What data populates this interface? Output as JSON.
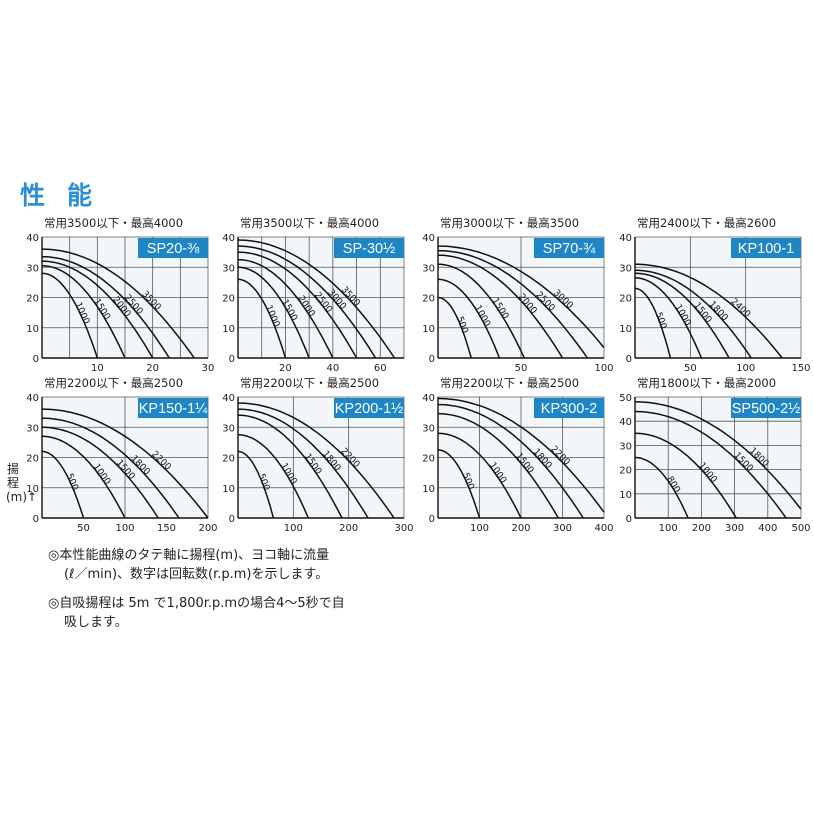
{
  "section_title": "性能",
  "y_axis_label": "揚程(m)↑",
  "notes": [
    {
      "line1": "◎本性能曲線のタテ軸に揚程(m)、ヨコ軸に流量",
      "line2": "(ℓ／min)、数字は回転数(r.p.m)を示します。"
    },
    {
      "line1": "◎自吸揚程は 5m で1,800r.p.mの場合4～5秒で自",
      "line2": "吸します。"
    }
  ],
  "colors": {
    "title": "#2a8fd6",
    "badge": "#1e86c6",
    "badge_text": "#ffffff",
    "curve": "#111111",
    "plot_bg": "#f2f6f9"
  },
  "chart_data": [
    {
      "type": "line",
      "model": "SP20-⅜",
      "subtitle": "常用3500以下・最高4000",
      "xlim": [
        0,
        30
      ],
      "ylim": [
        0,
        40
      ],
      "xgrid": 5,
      "ygrid": 10,
      "xticks": [
        10,
        20,
        30
      ],
      "yticks": [
        0,
        10,
        20,
        30,
        40
      ],
      "curves": [
        {
          "rpm": "1000",
          "shutoff_head": 28,
          "max_flow": 10
        },
        {
          "rpm": "1500",
          "shutoff_head": 30.5,
          "max_flow": 15
        },
        {
          "rpm": "2000",
          "shutoff_head": 32,
          "max_flow": 20
        },
        {
          "rpm": "2500",
          "shutoff_head": 33.5,
          "max_flow": 23
        },
        {
          "rpm": "3500",
          "shutoff_head": 36,
          "max_flow": 27.5
        }
      ]
    },
    {
      "type": "line",
      "model": "SP-30½",
      "subtitle": "常用3500以下・最高4000",
      "xlim": [
        0,
        70
      ],
      "ylim": [
        0,
        40
      ],
      "xgrid": 10,
      "ygrid": 10,
      "xticks": [
        20,
        40,
        60
      ],
      "yticks": [
        0,
        10,
        20,
        30,
        40
      ],
      "curves": [
        {
          "rpm": "1000",
          "shutoff_head": 26,
          "max_flow": 20
        },
        {
          "rpm": "1500",
          "shutoff_head": 30,
          "max_flow": 30
        },
        {
          "rpm": "2000",
          "shutoff_head": 32.5,
          "max_flow": 40
        },
        {
          "rpm": "2500",
          "shutoff_head": 35,
          "max_flow": 50
        },
        {
          "rpm": "3000",
          "shutoff_head": 37,
          "max_flow": 58
        },
        {
          "rpm": "3500",
          "shutoff_head": 39,
          "max_flow": 66
        }
      ]
    },
    {
      "type": "line",
      "model": "SP70-¾",
      "subtitle": "常用3000以下・最高3500",
      "xlim": [
        0,
        100
      ],
      "ylim": [
        0,
        40
      ],
      "xgrid": 50,
      "ygrid": 10,
      "xticks": [
        50,
        100
      ],
      "yticks": [
        0,
        10,
        20,
        30,
        40
      ],
      "curves": [
        {
          "rpm": "500",
          "shutoff_head": 20,
          "max_flow": 20
        },
        {
          "rpm": "1000",
          "shutoff_head": 26,
          "max_flow": 37
        },
        {
          "rpm": "1500",
          "shutoff_head": 31,
          "max_flow": 52
        },
        {
          "rpm": "2000",
          "shutoff_head": 34,
          "max_flow": 75
        },
        {
          "rpm": "2500",
          "shutoff_head": 35.5,
          "max_flow": 90
        },
        {
          "rpm": "3000",
          "shutoff_head": 37,
          "max_flow": 105
        }
      ]
    },
    {
      "type": "line",
      "model": "KP100-1",
      "subtitle": "常用2400以下・最高2600",
      "xlim": [
        0,
        150
      ],
      "ylim": [
        0,
        40
      ],
      "xgrid": 50,
      "ygrid": 10,
      "xticks": [
        50,
        100,
        150
      ],
      "yticks": [
        0,
        10,
        20,
        30,
        40
      ],
      "curves": [
        {
          "rpm": "500",
          "shutoff_head": 23,
          "max_flow": 32
        },
        {
          "rpm": "1000",
          "shutoff_head": 26.5,
          "max_flow": 60
        },
        {
          "rpm": "1500",
          "shutoff_head": 28,
          "max_flow": 85
        },
        {
          "rpm": "1800",
          "shutoff_head": 29,
          "max_flow": 105
        },
        {
          "rpm": "2400",
          "shutoff_head": 31,
          "max_flow": 133
        }
      ]
    },
    {
      "type": "line",
      "model": "KP150-1¼",
      "subtitle": "常用2200以下・最高2500",
      "xlim": [
        0,
        200
      ],
      "ylim": [
        0,
        40
      ],
      "xgrid": 100,
      "ygrid": 10,
      "xticks": [
        50,
        100,
        150,
        200
      ],
      "yticks": [
        0,
        10,
        20,
        30,
        40
      ],
      "curves": [
        {
          "rpm": "500",
          "shutoff_head": 22,
          "max_flow": 50
        },
        {
          "rpm": "1000",
          "shutoff_head": 27,
          "max_flow": 100
        },
        {
          "rpm": "1500",
          "shutoff_head": 30,
          "max_flow": 140
        },
        {
          "rpm": "1800",
          "shutoff_head": 33,
          "max_flow": 165
        },
        {
          "rpm": "2200",
          "shutoff_head": 36,
          "max_flow": 200
        }
      ]
    },
    {
      "type": "line",
      "model": "KP200-1½",
      "subtitle": "常用2200以下・最高2500",
      "xlim": [
        0,
        300
      ],
      "ylim": [
        0,
        40
      ],
      "xgrid": 100,
      "ygrid": 10,
      "xticks": [
        100,
        200,
        300
      ],
      "yticks": [
        0,
        10,
        20,
        30,
        40
      ],
      "curves": [
        {
          "rpm": "500",
          "shutoff_head": 22,
          "max_flow": 64
        },
        {
          "rpm": "1000",
          "shutoff_head": 27.5,
          "max_flow": 127
        },
        {
          "rpm": "1500",
          "shutoff_head": 34,
          "max_flow": 188
        },
        {
          "rpm": "1800",
          "shutoff_head": 36,
          "max_flow": 235
        },
        {
          "rpm": "2200",
          "shutoff_head": 38,
          "max_flow": 282
        }
      ]
    },
    {
      "type": "line",
      "model": "KP300-2",
      "subtitle": "常用2200以下・最高2500",
      "xlim": [
        0,
        400
      ],
      "ylim": [
        0,
        40
      ],
      "xgrid": 100,
      "ygrid": 10,
      "xticks": [
        100,
        200,
        300,
        400
      ],
      "yticks": [
        0,
        10,
        20,
        30,
        40
      ],
      "curves": [
        {
          "rpm": "500",
          "shutoff_head": 22.5,
          "max_flow": 100
        },
        {
          "rpm": "1000",
          "shutoff_head": 28,
          "max_flow": 200
        },
        {
          "rpm": "1500",
          "shutoff_head": 34.5,
          "max_flow": 290
        },
        {
          "rpm": "1800",
          "shutoff_head": 37.5,
          "max_flow": 350
        },
        {
          "rpm": "2200",
          "shutoff_head": 39.5,
          "max_flow": 410
        }
      ]
    },
    {
      "type": "line",
      "model": "SP500-2½",
      "subtitle": "常用1800以下・最高2000",
      "xlim": [
        0,
        500
      ],
      "ylim": [
        0,
        50
      ],
      "xgrid": 100,
      "ygrid": 10,
      "xticks": [
        100,
        200,
        300,
        400,
        500
      ],
      "yticks": [
        0,
        10,
        20,
        30,
        40,
        50
      ],
      "curves": [
        {
          "rpm": "800",
          "shutoff_head": 25,
          "max_flow": 160
        },
        {
          "rpm": "1000",
          "shutoff_head": 35,
          "max_flow": 305
        },
        {
          "rpm": "1500",
          "shutoff_head": 44,
          "max_flow": 455
        },
        {
          "rpm": "1800",
          "shutoff_head": 48,
          "max_flow": 520
        }
      ]
    }
  ]
}
